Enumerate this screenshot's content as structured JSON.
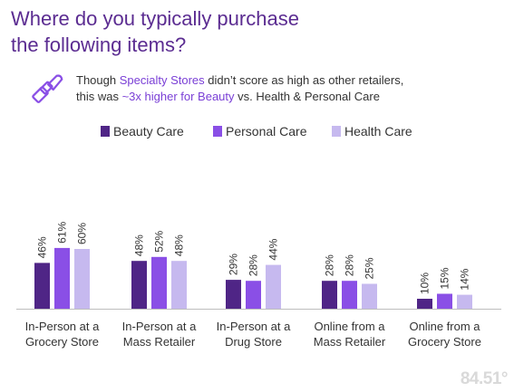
{
  "title_line1": "Where do you typically purchase",
  "title_line2": "the following items?",
  "subtitle": {
    "line1_a": "Though ",
    "line1_hl": "Specialty Stores",
    "line1_b": " didn’t score as high as other retailers,",
    "line2_a": "this was ",
    "line2_hl": "~3x higher for Beauty",
    "line2_b": " vs. Health & Personal Care"
  },
  "logo_text": "84.51°",
  "icon": "lipstick-icon",
  "colors": {
    "beauty": "#4f2586",
    "personal": "#8a4fe6",
    "health": "#c6b9ef",
    "highlight": "#7a3fd6",
    "title": "#5b2c91"
  },
  "chart_data": {
    "type": "bar",
    "categories": [
      [
        "In-Person at a",
        "Grocery Store"
      ],
      [
        "In-Person at a",
        "Mass Retailer"
      ],
      [
        "In-Person at a",
        "Drug Store"
      ],
      [
        "Online from a",
        "Mass Retailer"
      ],
      [
        "Online from a",
        "Grocery Store"
      ]
    ],
    "series": [
      {
        "name": "Beauty Care",
        "values": [
          46,
          48,
          29,
          28,
          10
        ],
        "labels": [
          "46%",
          "48%",
          "29%",
          "28%",
          "10%"
        ]
      },
      {
        "name": "Personal Care",
        "values": [
          61,
          52,
          28,
          28,
          15
        ],
        "labels": [
          "61%",
          "52%",
          "28%",
          "28%",
          "15%"
        ]
      },
      {
        "name": "Health Care",
        "values": [
          60,
          48,
          44,
          25,
          14
        ],
        "labels": [
          "60%",
          "48%",
          "44%",
          "25%",
          "14%"
        ]
      }
    ],
    "ylim": [
      0,
      100
    ],
    "legend_position": "top",
    "grid": false
  }
}
